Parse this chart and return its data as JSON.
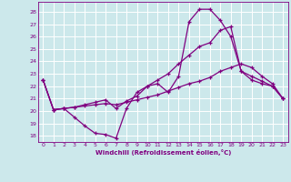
{
  "xlabel": "Windchill (Refroidissement éolien,°C)",
  "background_color": "#cce8eb",
  "line_color": "#800080",
  "grid_color": "#b0d0d8",
  "xlim": [
    -0.5,
    23.5
  ],
  "ylim": [
    17.5,
    28.8
  ],
  "xticks": [
    0,
    1,
    2,
    3,
    4,
    5,
    6,
    7,
    8,
    9,
    10,
    11,
    12,
    13,
    14,
    15,
    16,
    17,
    18,
    19,
    20,
    21,
    22,
    23
  ],
  "yticks": [
    18,
    19,
    20,
    21,
    22,
    23,
    24,
    25,
    26,
    27,
    28
  ],
  "line1_x": [
    0,
    1,
    2,
    3,
    4,
    5,
    6,
    7,
    8,
    9,
    10,
    11,
    12,
    13,
    14,
    15,
    16,
    17,
    18,
    19,
    20,
    21,
    22,
    23
  ],
  "line1_y": [
    22.5,
    20.1,
    20.2,
    19.5,
    18.8,
    18.2,
    18.1,
    17.8,
    20.2,
    21.5,
    22.0,
    22.2,
    21.5,
    22.8,
    27.2,
    28.2,
    28.2,
    27.3,
    26.0,
    23.2,
    22.5,
    22.2,
    22.0,
    21.0
  ],
  "line2_x": [
    0,
    1,
    2,
    3,
    4,
    5,
    6,
    7,
    8,
    9,
    10,
    11,
    12,
    13,
    14,
    15,
    16,
    17,
    18,
    19,
    20,
    21,
    22,
    23
  ],
  "line2_y": [
    22.5,
    20.1,
    20.2,
    20.3,
    20.5,
    20.7,
    20.9,
    20.2,
    20.8,
    21.2,
    22.0,
    22.5,
    23.0,
    23.8,
    24.5,
    25.2,
    25.5,
    26.5,
    26.8,
    23.2,
    22.8,
    22.4,
    22.0,
    21.0
  ],
  "line3_x": [
    0,
    1,
    2,
    3,
    4,
    5,
    6,
    7,
    8,
    9,
    10,
    11,
    12,
    13,
    14,
    15,
    16,
    17,
    18,
    19,
    20,
    21,
    22,
    23
  ],
  "line3_y": [
    22.5,
    20.1,
    20.2,
    20.3,
    20.4,
    20.5,
    20.6,
    20.5,
    20.7,
    20.9,
    21.1,
    21.3,
    21.6,
    21.9,
    22.2,
    22.4,
    22.7,
    23.2,
    23.5,
    23.8,
    23.5,
    22.8,
    22.2,
    21.0
  ]
}
